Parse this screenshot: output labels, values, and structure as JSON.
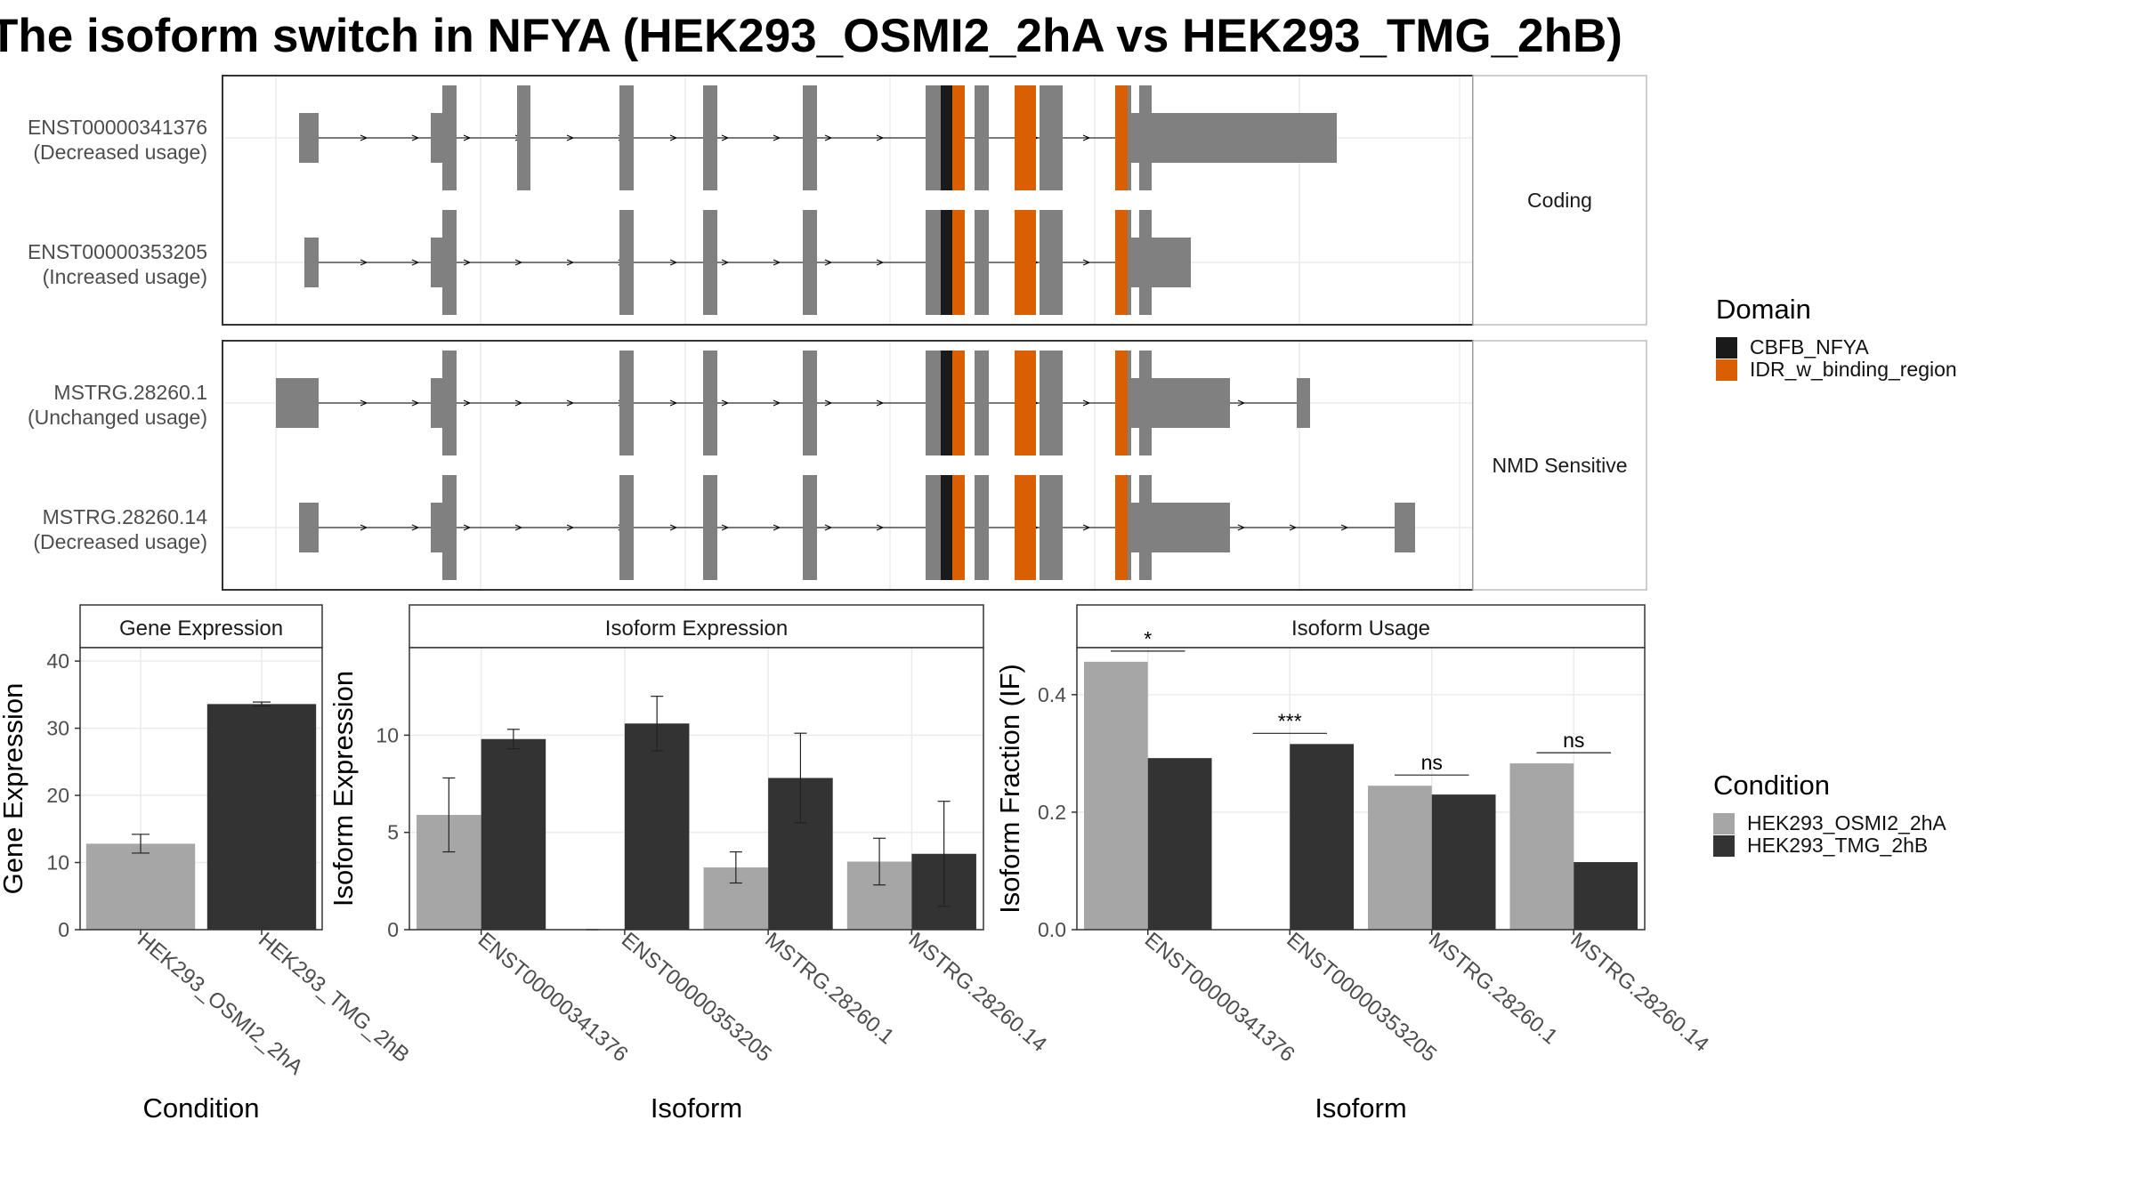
{
  "title": "The isoform switch in NFYA (HEK293_OSMI2_2hA vs HEK293_TMG_2hB)",
  "colors": {
    "exon": "#808080",
    "domain_cbfb": "#1a1a1a",
    "domain_idr": "#d95f02",
    "cond_a": "#a6a6a6",
    "cond_b": "#333333"
  },
  "structure": {
    "panels": [
      {
        "strip": "Coding",
        "transcripts": [
          {
            "id": "ENST00000341376",
            "usage": "(Decreased usage)",
            "first_exon": "small",
            "extra_exons": 0,
            "utr": "long"
          },
          {
            "id": "ENST00000353205",
            "usage": "(Increased usage)",
            "first_exon": "thin",
            "extra_exons": 0,
            "utr": "short"
          }
        ]
      },
      {
        "strip": "NMD Sensitive",
        "transcripts": [
          {
            "id": "MSTRG.28260.1",
            "usage": "(Unchanged usage)",
            "first_exon": "wide",
            "extra_exons": 1,
            "utr": "medium"
          },
          {
            "id": "MSTRG.28260.14",
            "usage": "(Decreased usage)",
            "first_exon": "small",
            "extra_exons": 1,
            "utr": "medium"
          }
        ]
      }
    ]
  },
  "legend_domain": {
    "title": "Domain",
    "items": [
      {
        "label": "CBFB_NFYA",
        "color": "#1a1a1a"
      },
      {
        "label": "IDR_w_binding_region",
        "color": "#d95f02"
      }
    ]
  },
  "legend_condition": {
    "title": "Condition",
    "items": [
      {
        "label": "HEK293_OSMI2_2hA",
        "color": "#a6a6a6"
      },
      {
        "label": "HEK293_TMG_2hB",
        "color": "#333333"
      }
    ]
  },
  "chart_data": [
    {
      "type": "bar",
      "title": "Gene Expression",
      "xlabel": "Condition",
      "ylabel": "Gene Expression",
      "ylim": [
        0,
        42
      ],
      "yticks": [
        0,
        10,
        20,
        30,
        40
      ],
      "categories": [
        "HEK293_OSMI2_2hA",
        "HEK293_TMG_2hB"
      ],
      "values": [
        12.8,
        33.6
      ],
      "errors": [
        1.4,
        0.3
      ],
      "bar_colors": [
        "#a6a6a6",
        "#333333"
      ]
    },
    {
      "type": "bar",
      "title": "Isoform Expression",
      "xlabel": "Isoform",
      "ylabel": "Isoform Expression",
      "ylim": [
        0,
        14.5
      ],
      "yticks": [
        0,
        5,
        10
      ],
      "categories": [
        "ENST00000341376",
        "ENST00000353205",
        "MSTRG.28260.1",
        "MSTRG.28260.14"
      ],
      "series": [
        {
          "name": "HEK293_OSMI2_2hA",
          "values": [
            5.9,
            0.0,
            3.2,
            3.5
          ],
          "errors": [
            1.9,
            0.0,
            0.8,
            1.2
          ]
        },
        {
          "name": "HEK293_TMG_2hB",
          "values": [
            9.8,
            10.6,
            7.8,
            3.9
          ],
          "errors": [
            0.5,
            1.4,
            2.3,
            2.7
          ]
        }
      ]
    },
    {
      "type": "bar",
      "title": "Isoform Usage",
      "xlabel": "Isoform",
      "ylabel": "Isoform Fraction (IF)",
      "ylim": [
        0,
        0.48
      ],
      "yticks": [
        0.0,
        0.2,
        0.4
      ],
      "yticklabels": [
        "0.0",
        "0.2",
        "0.4"
      ],
      "categories": [
        "ENST00000341376",
        "ENST00000353205",
        "MSTRG.28260.1",
        "MSTRG.28260.14"
      ],
      "series": [
        {
          "name": "HEK293_OSMI2_2hA",
          "values": [
            0.456,
            0.0,
            0.245,
            0.283
          ]
        },
        {
          "name": "HEK293_TMG_2hB",
          "values": [
            0.292,
            0.316,
            0.23,
            0.115
          ]
        }
      ],
      "significance": [
        "*",
        "***",
        "ns",
        "ns"
      ]
    }
  ]
}
